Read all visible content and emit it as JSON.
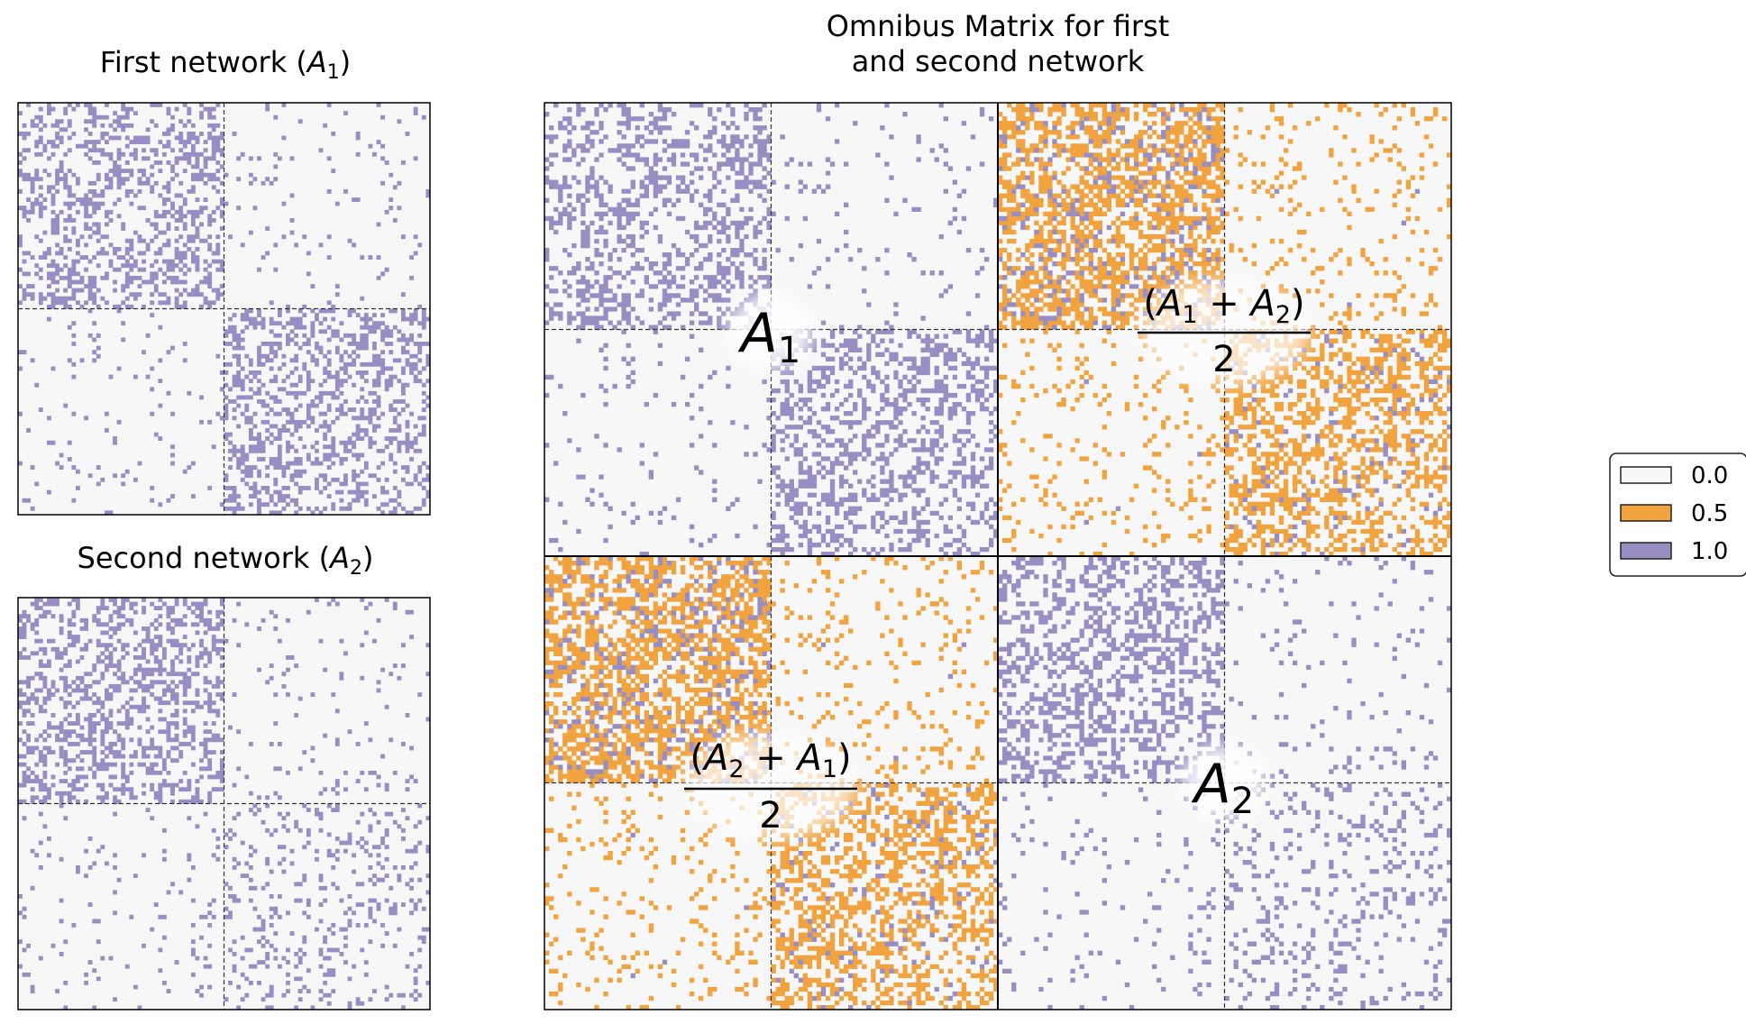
{
  "chart_data": [
    {
      "type": "heatmap",
      "title": "First network (A1)",
      "title_main": "First network (",
      "title_var": "A",
      "title_sub": "1",
      "title_close": ")",
      "n_nodes": 100,
      "block_boundaries": [
        50
      ],
      "block_edge_probability": [
        [
          0.35,
          0.05
        ],
        [
          0.05,
          0.35
        ]
      ],
      "values": [
        0.0,
        1.0
      ]
    },
    {
      "type": "heatmap",
      "title": "Second network (A2)",
      "title_main": "Second network (",
      "title_var": "A",
      "title_sub": "2",
      "title_close": ")",
      "n_nodes": 100,
      "block_boundaries": [
        50
      ],
      "block_edge_probability": [
        [
          0.35,
          0.05
        ],
        [
          0.05,
          0.15
        ]
      ],
      "values": [
        0.0,
        1.0
      ]
    },
    {
      "type": "heatmap",
      "title": "Omnibus Matrix for first and second network",
      "title_lines": [
        "Omnibus Matrix for first",
        "and second network"
      ],
      "n_nodes": 200,
      "block_boundaries": [
        50,
        100,
        150
      ],
      "values": [
        0.0,
        0.5,
        1.0
      ],
      "block_labels": {
        "top_left": {
          "var": "A",
          "sub": "1"
        },
        "top_right": {
          "numerator": {
            "open": "(",
            "a": "A",
            "a_sub": "1",
            "op": "+",
            "b": "A",
            "b_sub": "2",
            "close": ")"
          },
          "denominator": "2"
        },
        "bottom_left": {
          "numerator": {
            "open": "(",
            "a": "A",
            "a_sub": "2",
            "op": "+",
            "b": "A",
            "b_sub": "1",
            "close": ")"
          },
          "denominator": "2"
        },
        "bottom_right": {
          "var": "A",
          "sub": "2"
        }
      }
    }
  ],
  "legend": {
    "placement": "right",
    "items": [
      {
        "label": "0.0",
        "color": "#f7f7f7"
      },
      {
        "label": "0.5",
        "color": "#f1a340"
      },
      {
        "label": "1.0",
        "color": "#998ec3"
      }
    ]
  }
}
